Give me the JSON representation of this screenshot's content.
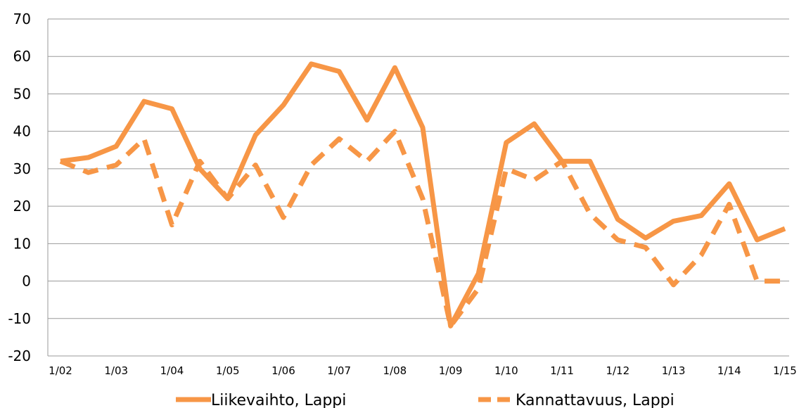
{
  "chart_data": {
    "type": "line",
    "title": "",
    "xlabel": "",
    "ylabel": "",
    "ylim": [
      -20,
      70
    ],
    "yticks": [
      "70",
      "60",
      "50",
      "40",
      "30",
      "20",
      "10",
      "0",
      "-10",
      "-20"
    ],
    "ytick_values": [
      70,
      60,
      50,
      40,
      30,
      20,
      10,
      0,
      -10,
      -20
    ],
    "xticks": [
      "1/02",
      "1/03",
      "1/04",
      "1/05",
      "1/06",
      "1/07",
      "1/08",
      "1/09",
      "1/10",
      "1/11",
      "1/12",
      "1/13",
      "1/14",
      "1/15"
    ],
    "grid": "horizontal",
    "legend_position": "bottom",
    "color": "#F79646",
    "series": [
      {
        "name": "Liikevaihto, Lappi",
        "style": "solid",
        "values": [
          32,
          33,
          36,
          48,
          46,
          30,
          22,
          39,
          47,
          58,
          56,
          43,
          57,
          41,
          -12,
          2,
          37,
          42,
          32,
          32,
          16.5,
          11.5,
          16,
          17.5,
          26,
          11,
          14
        ]
      },
      {
        "name": "Kannattavuus, Lappi",
        "style": "dashed",
        "values": [
          32,
          29,
          31,
          38,
          15,
          32,
          22,
          31,
          17,
          31,
          38,
          32,
          40,
          22,
          -12,
          -2,
          30,
          27,
          32,
          18,
          11,
          9,
          -1,
          7,
          20.5,
          0,
          0
        ]
      }
    ]
  }
}
